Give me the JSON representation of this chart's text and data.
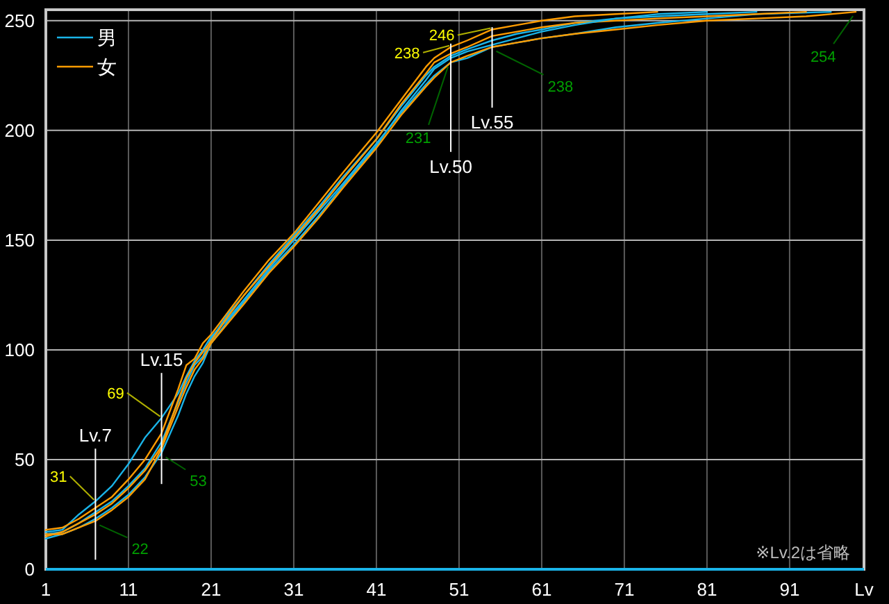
{
  "chart_data": {
    "type": "line",
    "xlabel": "Lv",
    "xlim": [
      1,
      100
    ],
    "xticks": [
      1,
      11,
      21,
      31,
      41,
      51,
      61,
      71,
      81,
      91
    ],
    "ylim": [
      0,
      255
    ],
    "yticks": [
      0,
      50,
      100,
      150,
      200,
      250
    ],
    "grid": true,
    "legend": "top left",
    "series": [
      {
        "name": "男",
        "color": "#1ab4e8",
        "x": [
          1,
          3,
          5,
          7,
          9,
          11,
          13,
          15,
          17,
          18,
          19,
          20,
          21,
          23,
          25,
          28,
          31,
          34,
          37,
          41,
          44,
          47,
          48,
          50,
          52,
          55,
          58,
          61,
          65,
          70,
          75,
          81,
          87,
          96
        ],
        "values": [
          17,
          18,
          25,
          31,
          38,
          48,
          60,
          69,
          80,
          88,
          95,
          100,
          106,
          114,
          123,
          137,
          150,
          163,
          176,
          194,
          208,
          221,
          225,
          231,
          233,
          238,
          240,
          242,
          244,
          247,
          249,
          251,
          253,
          254
        ]
      },
      {
        "name": "女",
        "color": "#ff9c00",
        "x": [
          1,
          3,
          5,
          7,
          9,
          11,
          13,
          15,
          17,
          18,
          19,
          20,
          21,
          23,
          25,
          28,
          31,
          34,
          37,
          41,
          44,
          47,
          48,
          50,
          52,
          55,
          58,
          61,
          65,
          70,
          75
        ],
        "values": [
          18,
          19,
          23,
          28,
          33,
          41,
          50,
          62,
          82,
          93,
          96,
          103,
          107,
          117,
          127,
          141,
          153,
          167,
          181,
          199,
          214,
          229,
          233,
          238,
          241,
          246,
          248,
          250,
          252,
          253,
          254
        ]
      },
      {
        "color": "#1ab4e8",
        "x": [
          1,
          3,
          5,
          7,
          9,
          11,
          13,
          15,
          17,
          18,
          19,
          20,
          21,
          23,
          25,
          28,
          31,
          34,
          37,
          41,
          44,
          47,
          48,
          50,
          52,
          55,
          58,
          61,
          65,
          70,
          75,
          81,
          87
        ],
        "values": [
          16,
          17,
          21,
          26,
          31,
          38,
          46,
          58,
          76,
          85,
          93,
          97,
          105,
          116,
          125,
          139,
          152,
          165,
          179,
          196,
          211,
          225,
          229,
          234,
          237,
          241,
          244,
          246,
          249,
          251,
          252,
          253,
          254
        ]
      },
      {
        "color": "#ff9c00",
        "x": [
          1,
          3,
          5,
          7,
          9,
          11,
          13,
          15,
          17,
          18,
          19,
          20,
          21,
          23,
          25,
          28,
          31,
          34,
          37,
          41,
          44,
          47,
          48,
          50,
          52,
          55,
          58,
          61,
          65,
          70,
          75,
          81,
          87,
          93
        ],
        "values": [
          15,
          17,
          21,
          25,
          30,
          37,
          45,
          56,
          77,
          87,
          94,
          99,
          104,
          115,
          125,
          138,
          151,
          164,
          178,
          196,
          212,
          226,
          231,
          235,
          238,
          243,
          245,
          247,
          249,
          250,
          251,
          252,
          253,
          254
        ]
      },
      {
        "color": "#1ab4e8",
        "x": [
          1,
          3,
          5,
          7,
          9,
          11,
          13,
          15,
          17,
          18,
          19,
          20,
          21,
          23,
          25,
          28,
          31,
          34,
          37,
          41,
          44,
          47,
          48,
          50,
          52,
          55,
          58,
          61,
          65,
          70,
          75,
          81
        ],
        "values": [
          14,
          16,
          19,
          23,
          28,
          34,
          42,
          53,
          70,
          80,
          88,
          94,
          103,
          113,
          122,
          136,
          148,
          161,
          175,
          193,
          209,
          223,
          228,
          233,
          236,
          239,
          242,
          245,
          248,
          251,
          253,
          254
        ]
      },
      {
        "color": "#ff9c00",
        "x": [
          1,
          3,
          5,
          7,
          9,
          11,
          13,
          15,
          17,
          18,
          19,
          20,
          21,
          23,
          25,
          28,
          31,
          34,
          37,
          41,
          44,
          47,
          48,
          50,
          52,
          55,
          58,
          61,
          65,
          70,
          75,
          81,
          87,
          93,
          99
        ],
        "values": [
          16,
          16,
          19,
          22,
          27,
          33,
          41,
          55,
          74,
          83,
          91,
          96,
          103,
          112,
          121,
          135,
          147,
          160,
          174,
          192,
          207,
          220,
          224,
          231,
          234,
          238,
          240,
          242,
          244,
          246,
          248,
          250,
          251,
          252,
          254
        ]
      }
    ],
    "ref_lines": [
      {
        "axis": "x",
        "value": 7,
        "label": "Lv.7"
      },
      {
        "axis": "x",
        "value": 15,
        "label": "Lv.15"
      },
      {
        "axis": "x",
        "value": 50,
        "label": "Lv.50"
      },
      {
        "axis": "x",
        "value": 55,
        "label": "Lv.55"
      }
    ],
    "annotations": [
      {
        "text": "31",
        "x": 7,
        "y": 31
      },
      {
        "text": "22",
        "x": 7,
        "y": 22
      },
      {
        "text": "69",
        "x": 15,
        "y": 69
      },
      {
        "text": "53",
        "x": 15,
        "y": 53
      },
      {
        "text": "238",
        "x": 50,
        "y": 238
      },
      {
        "text": "231",
        "x": 50,
        "y": 231
      },
      {
        "text": "246",
        "x": 55,
        "y": 246
      },
      {
        "text": "238",
        "x": 55,
        "y": 238
      },
      {
        "text": "254",
        "x": 99,
        "y": 254
      },
      "※Lv.2は省略"
    ]
  }
}
